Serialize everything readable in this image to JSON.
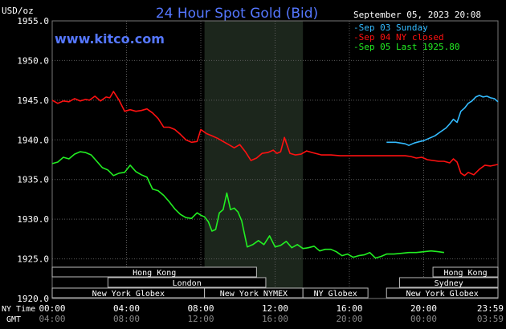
{
  "chart_data": {
    "type": "line",
    "title": "24 Hour Spot Gold (Bid)",
    "unit_label": "USD/oz",
    "brand": "www.kitco.com",
    "timestamp": "September 05, 2023 20:08",
    "ylim": [
      1920,
      1955
    ],
    "yticks": [
      "1920.0",
      "1925.0",
      "1930.0",
      "1935.0",
      "1940.0",
      "1945.0",
      "1950.0",
      "1955.0"
    ],
    "xlim": [
      0,
      24
    ],
    "ny_time_label": "NY Time",
    "gmt_label": "GMT",
    "xticks_ny": [
      "00:00",
      "04:00",
      "08:00",
      "12:00",
      "16:00",
      "20:00",
      "23:59"
    ],
    "xticks_gmt": [
      "04:00",
      "08:00",
      "12:00",
      "16:00",
      "20:00",
      "00:00",
      "03:59"
    ],
    "grid": true,
    "legend_position": "top-right",
    "series": [
      {
        "name": "Sep 03 Sunday",
        "color": "#33bbff",
        "x": [
          18.0,
          18.5,
          19.0,
          19.2,
          19.5,
          19.8,
          20.0,
          20.3,
          20.6,
          20.9,
          21.2,
          21.4,
          21.6,
          21.8,
          22.0,
          22.2,
          22.4,
          22.6,
          22.8,
          23.0,
          23.2,
          23.4,
          23.6,
          23.8,
          24.0
        ],
        "y": [
          1939.7,
          1939.7,
          1939.5,
          1939.3,
          1939.6,
          1939.8,
          1939.9,
          1940.2,
          1940.5,
          1941.0,
          1941.5,
          1942.0,
          1942.6,
          1942.2,
          1943.6,
          1944.0,
          1944.6,
          1944.9,
          1945.4,
          1945.6,
          1945.4,
          1945.5,
          1945.3,
          1945.2,
          1944.8
        ]
      },
      {
        "name": "Sep 04 NY closed",
        "color": "#ff1111",
        "x": [
          0.0,
          0.3,
          0.6,
          0.9,
          1.2,
          1.5,
          1.8,
          2.0,
          2.3,
          2.6,
          2.9,
          3.1,
          3.3,
          3.6,
          3.9,
          4.2,
          4.5,
          4.8,
          5.1,
          5.4,
          5.7,
          6.0,
          6.3,
          6.6,
          6.9,
          7.2,
          7.5,
          7.8,
          8.0,
          8.3,
          8.6,
          8.9,
          9.2,
          9.5,
          9.8,
          10.1,
          10.4,
          10.7,
          11.0,
          11.3,
          11.6,
          11.9,
          12.1,
          12.3,
          12.5,
          12.8,
          13.1,
          13.4,
          13.7,
          14.0,
          14.5,
          15.0,
          15.5,
          16.0,
          16.5,
          17.0,
          17.5,
          18.0,
          18.5,
          19.0,
          19.3,
          19.6,
          19.9,
          20.2,
          20.5,
          20.8,
          21.1,
          21.4,
          21.6,
          21.8,
          22.0,
          22.2,
          22.4,
          22.7,
          23.0,
          23.3,
          23.6,
          24.0
        ],
        "y": [
          1945.0,
          1944.6,
          1944.9,
          1944.8,
          1945.2,
          1944.9,
          1945.1,
          1945.0,
          1945.5,
          1944.9,
          1945.4,
          1945.3,
          1946.1,
          1945.0,
          1943.6,
          1943.8,
          1943.6,
          1943.7,
          1943.9,
          1943.4,
          1942.7,
          1941.6,
          1941.6,
          1941.3,
          1940.7,
          1940.0,
          1939.7,
          1939.8,
          1941.3,
          1940.8,
          1940.5,
          1940.2,
          1939.8,
          1939.4,
          1939.0,
          1939.4,
          1938.5,
          1937.4,
          1937.7,
          1938.3,
          1938.4,
          1938.7,
          1938.3,
          1938.5,
          1940.3,
          1938.3,
          1938.1,
          1938.2,
          1938.6,
          1938.4,
          1938.1,
          1938.1,
          1938.0,
          1938.0,
          1938.0,
          1938.0,
          1938.0,
          1938.0,
          1938.0,
          1938.0,
          1937.9,
          1937.7,
          1937.8,
          1937.5,
          1937.4,
          1937.3,
          1937.3,
          1937.1,
          1937.6,
          1937.2,
          1935.8,
          1935.5,
          1935.9,
          1935.6,
          1936.3,
          1936.8,
          1936.7,
          1936.9
        ]
      },
      {
        "name": "Sep 05 Last 1925.80",
        "color": "#22ee22",
        "x": [
          0.0,
          0.3,
          0.6,
          0.9,
          1.2,
          1.5,
          1.8,
          2.1,
          2.4,
          2.7,
          3.0,
          3.3,
          3.6,
          3.9,
          4.2,
          4.5,
          4.8,
          5.1,
          5.4,
          5.7,
          6.0,
          6.3,
          6.6,
          6.9,
          7.2,
          7.5,
          7.8,
          8.0,
          8.2,
          8.4,
          8.6,
          8.8,
          9.0,
          9.2,
          9.4,
          9.6,
          9.8,
          10.0,
          10.2,
          10.5,
          10.8,
          11.1,
          11.4,
          11.7,
          12.0,
          12.3,
          12.6,
          12.9,
          13.2,
          13.5,
          13.8,
          14.1,
          14.4,
          14.7,
          15.0,
          15.3,
          15.6,
          15.9,
          16.2,
          16.5,
          16.8,
          17.1,
          17.4,
          17.7,
          18.0,
          18.4,
          18.8,
          19.2,
          19.6,
          20.0,
          20.4,
          20.8,
          21.1
        ],
        "y": [
          1937.0,
          1937.2,
          1937.8,
          1937.6,
          1938.2,
          1938.5,
          1938.4,
          1938.1,
          1937.3,
          1936.5,
          1936.2,
          1935.5,
          1935.8,
          1935.9,
          1936.8,
          1936.0,
          1935.6,
          1935.3,
          1933.8,
          1933.6,
          1933.0,
          1932.2,
          1931.3,
          1930.6,
          1930.2,
          1930.1,
          1930.8,
          1930.5,
          1930.3,
          1929.7,
          1928.5,
          1928.7,
          1930.8,
          1931.2,
          1933.3,
          1931.2,
          1931.4,
          1930.9,
          1929.8,
          1926.5,
          1926.8,
          1927.3,
          1926.8,
          1927.9,
          1926.5,
          1926.7,
          1927.2,
          1926.4,
          1926.8,
          1926.3,
          1926.4,
          1926.6,
          1926.0,
          1926.2,
          1926.2,
          1925.9,
          1925.4,
          1925.6,
          1925.2,
          1925.4,
          1925.5,
          1925.8,
          1925.1,
          1925.3,
          1925.6,
          1925.6,
          1925.7,
          1925.8,
          1925.8,
          1925.9,
          1926.0,
          1925.9,
          1925.8
        ]
      }
    ],
    "sessions": [
      {
        "name": "Hong Kong",
        "row": 0,
        "start": 0.0,
        "end": 11.0
      },
      {
        "name": "Hong Kong",
        "row": 0,
        "start": 20.5,
        "end": 24.0
      },
      {
        "name": "London",
        "row": 1,
        "start": 3.0,
        "end": 11.5
      },
      {
        "name": "Sydney",
        "row": 1,
        "start": 18.7,
        "end": 24.0
      },
      {
        "name": "New York Globex",
        "row": 2,
        "start": 0.0,
        "end": 8.2
      },
      {
        "name": "New York NYMEX",
        "row": 2,
        "start": 8.2,
        "end": 13.5
      },
      {
        "name": "NY Globex",
        "row": 2,
        "start": 13.5,
        "end": 17.0
      },
      {
        "name": "New York Globex",
        "row": 2,
        "start": 18.0,
        "end": 24.0
      }
    ]
  }
}
